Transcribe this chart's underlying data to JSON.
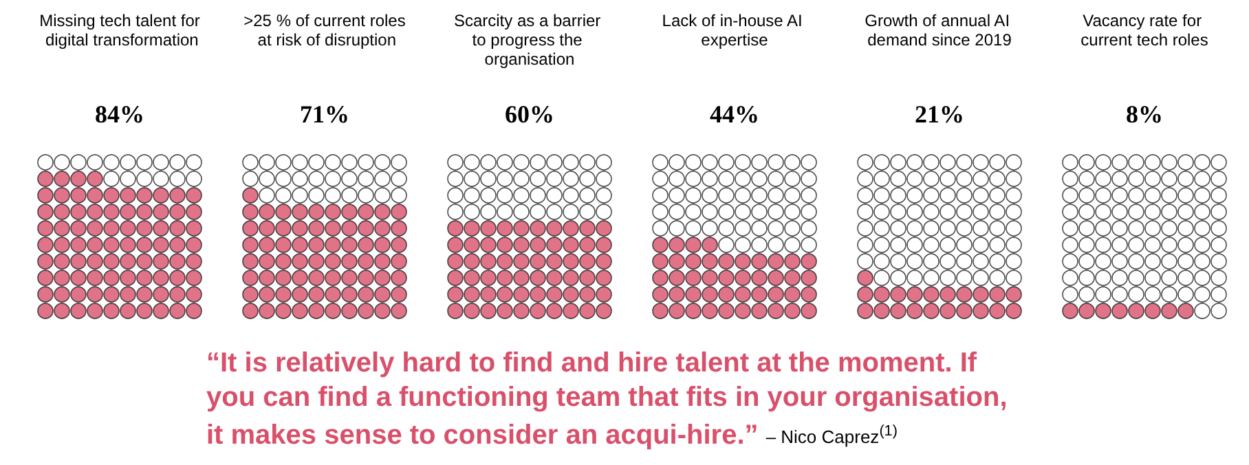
{
  "chart_data": {
    "type": "other",
    "categories": [
      "Missing tech talent for digital transformation",
      ">25 % of current roles at risk of disruption",
      "Scarcity as a barrier to progress the organisation",
      "Lack of in-house AI expertise",
      "Growth of annual AI demand since 2019",
      "Vacancy rate for current tech roles"
    ],
    "values": [
      84,
      71,
      60,
      44,
      21,
      8
    ],
    "value_labels": [
      "84%",
      "71%",
      "60%",
      "44%",
      "21%",
      "8%"
    ],
    "color": "#d9506b",
    "annotations": [
      "“It is relatively hard to find and hire talent at the moment. If you can find a functioning team that fits in your organisation, it makes sense to consider an acqui-hire.”",
      "– Nico Caprez$^{(1)}$"
    ]
  }
}
